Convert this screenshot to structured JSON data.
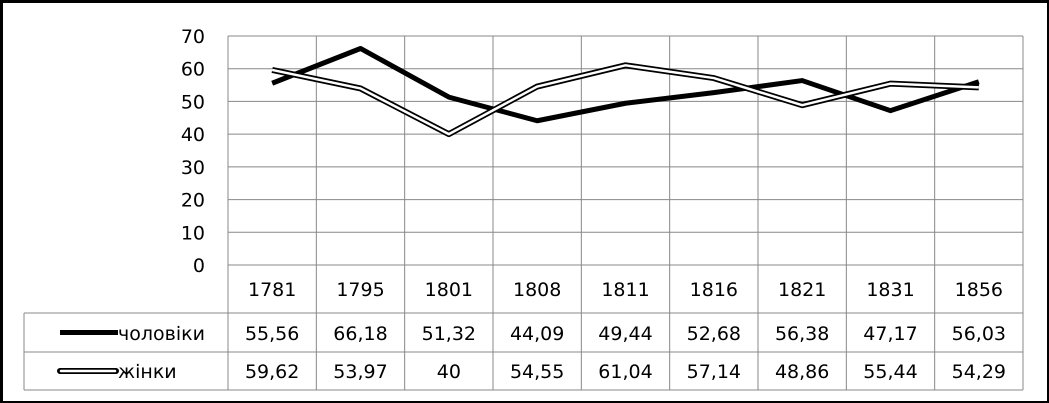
{
  "chart_data": {
    "type": "line",
    "categories": [
      "1781",
      "1795",
      "1801",
      "1808",
      "1811",
      "1816",
      "1821",
      "1831",
      "1856"
    ],
    "ylim": [
      0,
      70
    ],
    "yticks": [
      "0",
      "10",
      "20",
      "30",
      "40",
      "50",
      "60",
      "70"
    ],
    "grid": true,
    "legend": "data-table-left",
    "series": [
      {
        "name": "чоловіки",
        "style": "thick-solid",
        "values": [
          55.56,
          66.18,
          51.32,
          44.09,
          49.44,
          52.68,
          56.38,
          47.17,
          56.03
        ],
        "labels": [
          "55,56",
          "66,18",
          "51,32",
          "44,09",
          "49,44",
          "52,68",
          "56,38",
          "47,17",
          "56,03"
        ]
      },
      {
        "name": "жінки",
        "style": "double-outline",
        "values": [
          59.62,
          53.97,
          40,
          54.55,
          61.04,
          57.14,
          48.86,
          55.44,
          54.29
        ],
        "labels": [
          "59,62",
          "53,97",
          "40",
          "54,55",
          "61,04",
          "57,14",
          "48,86",
          "55,44",
          "54,29"
        ]
      }
    ]
  },
  "colors": {
    "line": "#000000",
    "grid": "#888888",
    "background": "#ffffff"
  }
}
